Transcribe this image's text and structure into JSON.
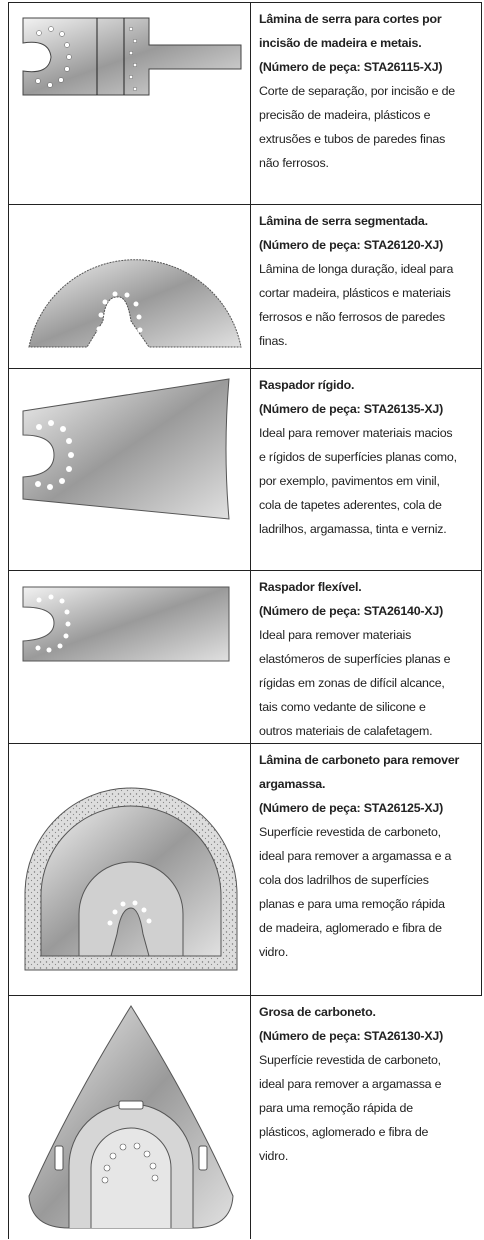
{
  "rows": [
    {
      "title": [
        "Lâmina de serra para cortes por",
        "incisão de madeira e metais."
      ],
      "part": "(Número de peça: STA26115-XJ)",
      "description": [
        "Corte de separação, por incisão e de",
        "precisão de madeira, plásticos e",
        "extrusões e tubos de paredes finas",
        "não ferrosos."
      ]
    },
    {
      "title": [
        "Lâmina de serra segmentada."
      ],
      "part": "(Número de peça: STA26120-XJ)",
      "description": [
        "Lâmina de longa duração, ideal para",
        "cortar madeira, plásticos e materiais",
        "ferrosos e não ferrosos de paredes",
        "finas."
      ]
    },
    {
      "title": [
        "Raspador rígido."
      ],
      "part": "(Número de peça: STA26135-XJ)",
      "description": [
        "Ideal para remover materiais macios",
        "e rígidos de superfícies planas como,",
        "por exemplo, pavimentos em vinil,",
        "cola de tapetes aderentes, cola de",
        "ladrilhos, argamassa, tinta e verniz."
      ]
    },
    {
      "title": [
        "Raspador flexível."
      ],
      "part": "(Número de peça: STA26140-XJ)",
      "description": [
        "Ideal para remover materiais",
        "elastómeros de superfícies planas e",
        "rígidas em zonas de difícil alcance,",
        "tais como vedante de silicone e",
        "outros materiais de calafetagem."
      ]
    },
    {
      "title": [
        "Lâmina de carboneto para remover",
        "argamassa."
      ],
      "part": "(Número de peça: STA26125-XJ)",
      "description": [
        "Superfície revestida de carboneto,",
        "ideal para remover a argamassa e a",
        "cola dos ladrilhos de superfícies",
        "planas e para uma remoção rápida",
        "de madeira, aglomerado e fibra de",
        "vidro."
      ]
    },
    {
      "title": [
        "Grosa de carboneto."
      ],
      "part": "(Número de peça: STA26130-XJ)",
      "description": [
        "Superfície revestida de carboneto,",
        "ideal para remover a argamassa e",
        "para uma remoção rápida de",
        "plásticos, aglomerado e fibra de",
        "vidro."
      ]
    }
  ]
}
